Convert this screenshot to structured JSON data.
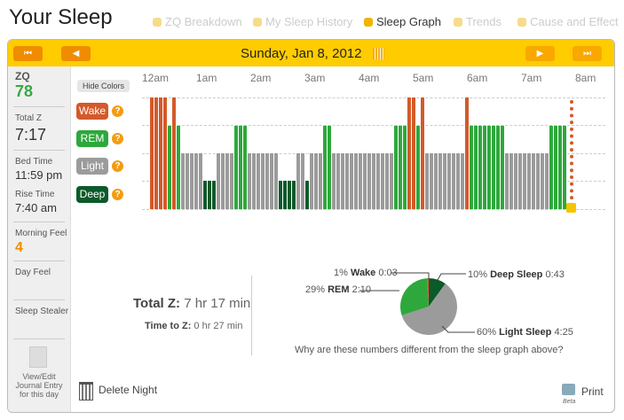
{
  "page_title": "Your Sleep",
  "nav": [
    {
      "label": "ZQ Breakdown",
      "active": false
    },
    {
      "label": "My Sleep History",
      "active": false
    },
    {
      "label": "Sleep Graph",
      "active": true
    },
    {
      "label": "Trends",
      "active": false
    },
    {
      "label": "Cause and Effect",
      "active": false
    }
  ],
  "header": {
    "date": "Sunday, Jan 8, 2012",
    "first": "⏮",
    "prev": "◀",
    "next": "▶",
    "last": "⏭"
  },
  "sidebar": {
    "zq_label": "ZQ",
    "zq": "78",
    "total_label": "Total Z",
    "total": "7:17",
    "bed_label": "Bed Time",
    "bed": "11:59 pm",
    "rise_label": "Rise Time",
    "rise": "7:40 am",
    "morning_label": "Morning Feel",
    "morning": "4",
    "day_label": "Day Feel",
    "stealer_label": "Sleep Stealer",
    "journal": "View/Edit Journal Entry for this day"
  },
  "graph": {
    "hide_colors": "Hide Colors",
    "hours": [
      "12am",
      "1am",
      "2am",
      "3am",
      "4am",
      "5am",
      "6am",
      "7am",
      "8am"
    ],
    "stages": [
      {
        "key": "W",
        "label": "Wake",
        "color": "#d35a2a"
      },
      {
        "key": "R",
        "label": "REM",
        "color": "#2ea83c"
      },
      {
        "key": "L",
        "label": "Light",
        "color": "#9b9b9b"
      },
      {
        "key": "D",
        "label": "Deep",
        "color": "#0b5a2a"
      }
    ],
    "help": "?"
  },
  "chart_data": [
    {
      "type": "bar",
      "title": "",
      "stage_order": [
        "Wake",
        "REM",
        "Light",
        "Deep"
      ],
      "epochs": [
        [
          "W",
          4
        ],
        [
          "R",
          1
        ],
        [
          "W",
          1
        ],
        [
          "R",
          1
        ],
        [
          "L",
          5
        ],
        [
          "D",
          3
        ],
        [
          "L",
          4
        ],
        [
          "R",
          3
        ],
        [
          "L",
          7
        ],
        [
          "D",
          4
        ],
        [
          "L",
          2
        ],
        [
          "D",
          1
        ],
        [
          "L",
          3
        ],
        [
          "R",
          2
        ],
        [
          "L",
          14
        ],
        [
          "R",
          3
        ],
        [
          "W",
          2
        ],
        [
          "R",
          1
        ],
        [
          "W",
          1
        ],
        [
          "L",
          9
        ],
        [
          "W",
          1
        ],
        [
          "R",
          8
        ],
        [
          "L",
          10
        ],
        [
          "R",
          4
        ]
      ]
    },
    {
      "type": "pie",
      "slices": [
        {
          "name": "Deep Sleep",
          "pct": 10,
          "time": "0:43",
          "color": "#0b5a2a"
        },
        {
          "name": "Light Sleep",
          "pct": 60,
          "time": "4:25",
          "color": "#9b9b9b"
        },
        {
          "name": "REM",
          "pct": 29,
          "time": "2:10",
          "color": "#2ea83c"
        },
        {
          "name": "Wake",
          "pct": 1,
          "time": "0:03",
          "color": "#d35a2a"
        }
      ]
    }
  ],
  "summary": {
    "total_label": "Total Z:",
    "total": "7 hr 17 min",
    "ttz_label": "Time to Z:",
    "ttz": "0 hr 27 min",
    "why": "Why are these numbers different from the sleep graph above?"
  },
  "footer": {
    "delete": "Delete Night",
    "print": "Print",
    "beta": "Beta"
  }
}
